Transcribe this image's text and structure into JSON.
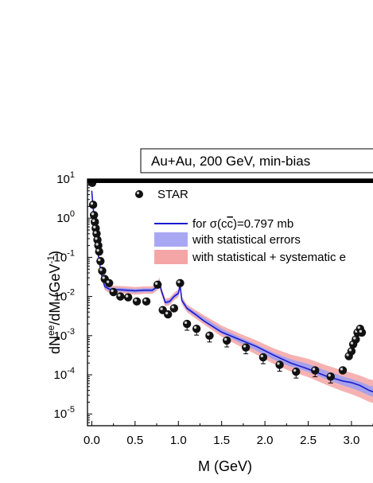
{
  "chart_data": {
    "type": "scatter",
    "title": "Au+Au, 200 GeV, min-bias",
    "xlabel": "M (GeV)",
    "ylabel": "dN^ee/dM (GeV^-1)",
    "ylabel_parts": {
      "base": "dN",
      "sup1": "ee",
      "mid": "/dM (GeV",
      "sup2": "-1",
      "end": ")"
    },
    "xlim": [
      -0.05,
      3.35
    ],
    "ylim_log10": [
      -5.3,
      1
    ],
    "log_y": true,
    "x_ticks": [
      "0.0",
      "0.5",
      "1.0",
      "1.5",
      "2.0",
      "2.5",
      "3.0"
    ],
    "y_tick_exponents": [
      "1",
      "0",
      "-1",
      "-2",
      "-3",
      "-4",
      "-5"
    ],
    "legend": {
      "data_label": "STAR",
      "line_label_prefix": "for ",
      "line_label_sigma": "σ(c",
      "line_label_cbar": "c",
      "line_label_suffix": ")=0.797 mb",
      "stat_band_label": "with statistical errors",
      "sys_band_label": "with statistical + systematic e"
    },
    "colors": {
      "line": "#1a1acc",
      "stat_band": "#9f9ff0",
      "sys_band": "#f4a5a5",
      "marker": "#111111",
      "title_bar": "#000000"
    },
    "series": [
      {
        "name": "STAR",
        "x": [
          0.005,
          0.015,
          0.025,
          0.035,
          0.045,
          0.055,
          0.065,
          0.075,
          0.085,
          0.1,
          0.12,
          0.15,
          0.2,
          0.25,
          0.33,
          0.42,
          0.52,
          0.63,
          0.76,
          0.82,
          0.88,
          0.95,
          1.02,
          1.1,
          1.21,
          1.36,
          1.56,
          1.78,
          1.98,
          2.17,
          2.36,
          2.58,
          2.76,
          2.9,
          2.97,
          3.0,
          3.02,
          3.05,
          3.07,
          3.1,
          3.12,
          3.3
        ],
        "y": [
          8,
          2.2,
          1.2,
          0.8,
          0.55,
          0.4,
          0.28,
          0.2,
          0.14,
          0.08,
          0.045,
          0.028,
          0.022,
          0.013,
          0.01,
          0.0095,
          0.0075,
          0.0075,
          0.02,
          0.0045,
          0.0035,
          0.005,
          0.022,
          0.002,
          0.0015,
          0.001,
          0.00075,
          0.0005,
          0.00028,
          0.00018,
          0.00012,
          0.00013,
          9e-05,
          0.00013,
          0.0003,
          0.0004,
          0.0006,
          0.0008,
          0.0012,
          0.0015,
          0.0012,
          3.8e-05
        ]
      }
    ],
    "curve": {
      "x": [
        0.0,
        0.01,
        0.02,
        0.03,
        0.04,
        0.05,
        0.06,
        0.08,
        0.1,
        0.12,
        0.15,
        0.2,
        0.25,
        0.3,
        0.4,
        0.5,
        0.6,
        0.7,
        0.76,
        0.78,
        0.8,
        0.85,
        0.9,
        0.95,
        1.0,
        1.02,
        1.04,
        1.1,
        1.2,
        1.3,
        1.5,
        1.7,
        1.9,
        2.1,
        2.3,
        2.5,
        2.7,
        2.9,
        3.0,
        3.1,
        3.2,
        3.35
      ],
      "y": [
        5,
        2.5,
        1.5,
        0.9,
        0.55,
        0.35,
        0.22,
        0.1,
        0.05,
        0.03,
        0.018,
        0.0155,
        0.015,
        0.015,
        0.0145,
        0.014,
        0.0145,
        0.0145,
        0.018,
        0.025,
        0.015,
        0.007,
        0.0075,
        0.01,
        0.012,
        0.02,
        0.008,
        0.005,
        0.0035,
        0.0025,
        0.0013,
        0.0008,
        0.0005,
        0.0003,
        0.0002,
        0.00015,
        0.0001,
        7e-05,
        6e-05,
        5e-05,
        4e-05,
        3.2e-05
      ]
    }
  }
}
